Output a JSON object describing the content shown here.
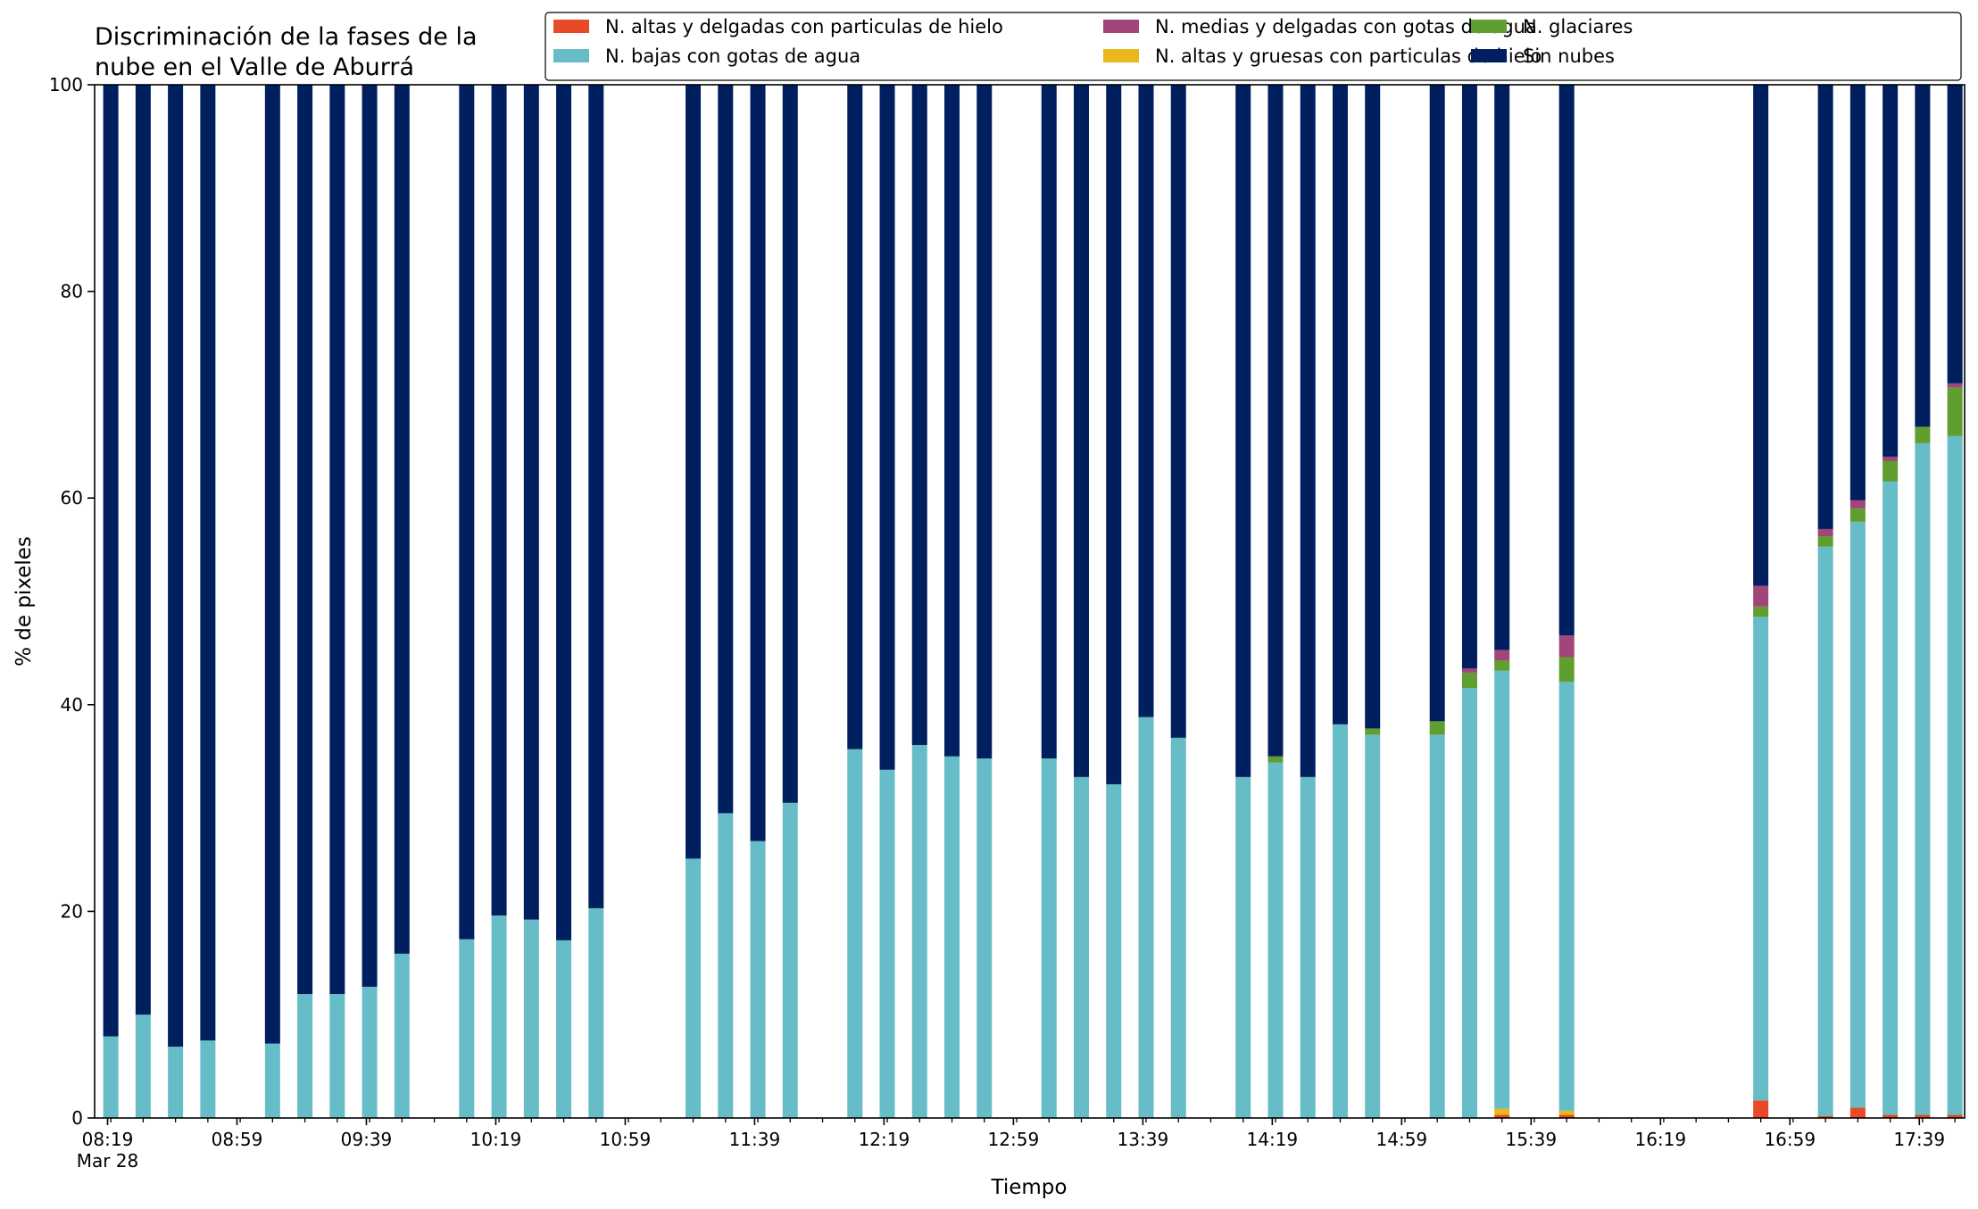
{
  "chart_data": {
    "type": "bar",
    "stacked": true,
    "title_lines": [
      "Discriminación de la fases de la",
      "nube en el Valle de Aburrá"
    ],
    "xlabel": "Tiempo",
    "ylabel": "% de pixeles",
    "ylim": [
      0,
      100
    ],
    "yticks": [
      0,
      20,
      40,
      60,
      80,
      100
    ],
    "x_range_minutes": [
      495,
      1073
    ],
    "xtick_labels": [
      {
        "minute": 499,
        "label": "08:19",
        "sublabel": "Mar 28"
      },
      {
        "minute": 539,
        "label": "08:59"
      },
      {
        "minute": 579,
        "label": "09:39"
      },
      {
        "minute": 619,
        "label": "10:19"
      },
      {
        "minute": 659,
        "label": "10:59"
      },
      {
        "minute": 699,
        "label": "11:39"
      },
      {
        "minute": 739,
        "label": "12:19"
      },
      {
        "minute": 779,
        "label": "12:59"
      },
      {
        "minute": 819,
        "label": "13:39"
      },
      {
        "minute": 859,
        "label": "14:19"
      },
      {
        "minute": 899,
        "label": "14:59"
      },
      {
        "minute": 939,
        "label": "15:39"
      },
      {
        "minute": 979,
        "label": "16:19"
      },
      {
        "minute": 1019,
        "label": "16:59"
      },
      {
        "minute": 1059,
        "label": "17:39"
      }
    ],
    "minor_tick_step_minutes": 10,
    "legend_position": "top-right",
    "series": [
      {
        "name": "N. altas y delgadas con particulas de hielo",
        "color": "#e84a27"
      },
      {
        "name": "N. altas y gruesas con particulas de hielo",
        "color": "#e8b81c"
      },
      {
        "name": "N. bajas con gotas de agua",
        "color": "#66bdc8"
      },
      {
        "name": "N. glaciares",
        "color": "#5f9e2f"
      },
      {
        "name": "N. medias y delgadas con gotas de agua",
        "color": "#a1457a"
      },
      {
        "name": "Sin nubes",
        "color": "#001f5f"
      }
    ],
    "legend_order": [
      0,
      2,
      4,
      1,
      3,
      5
    ],
    "bars": [
      {
        "minute": 500,
        "values": [
          0,
          0,
          7.9,
          0,
          0,
          92.1
        ]
      },
      {
        "minute": 510,
        "values": [
          0,
          0,
          10.0,
          0,
          0,
          90.0
        ]
      },
      {
        "minute": 520,
        "values": [
          0,
          0,
          6.9,
          0,
          0,
          93.1
        ]
      },
      {
        "minute": 530,
        "values": [
          0,
          0,
          7.5,
          0,
          0,
          92.5
        ]
      },
      {
        "minute": 550,
        "values": [
          0,
          0,
          7.2,
          0,
          0,
          92.8
        ]
      },
      {
        "minute": 560,
        "values": [
          0,
          0,
          12.0,
          0,
          0,
          88.0
        ]
      },
      {
        "minute": 570,
        "values": [
          0,
          0,
          12.0,
          0,
          0,
          88.0
        ]
      },
      {
        "minute": 580,
        "values": [
          0,
          0,
          12.7,
          0,
          0,
          87.3
        ]
      },
      {
        "minute": 590,
        "values": [
          0,
          0,
          15.9,
          0,
          0,
          84.1
        ]
      },
      {
        "minute": 610,
        "values": [
          0,
          0,
          17.3,
          0,
          0,
          82.7
        ]
      },
      {
        "minute": 620,
        "values": [
          0,
          0,
          19.6,
          0,
          0,
          80.4
        ]
      },
      {
        "minute": 630,
        "values": [
          0,
          0,
          19.2,
          0,
          0,
          80.8
        ]
      },
      {
        "minute": 640,
        "values": [
          0,
          0,
          17.2,
          0,
          0,
          82.8
        ]
      },
      {
        "minute": 650,
        "values": [
          0,
          0,
          20.3,
          0,
          0,
          79.7
        ]
      },
      {
        "minute": 680,
        "values": [
          0,
          0,
          25.1,
          0,
          0,
          74.9
        ]
      },
      {
        "minute": 690,
        "values": [
          0,
          0,
          29.5,
          0,
          0,
          70.5
        ]
      },
      {
        "minute": 700,
        "values": [
          0,
          0,
          26.8,
          0,
          0,
          73.2
        ]
      },
      {
        "minute": 710,
        "values": [
          0,
          0,
          30.5,
          0,
          0,
          69.5
        ]
      },
      {
        "minute": 730,
        "values": [
          0,
          0,
          35.7,
          0,
          0,
          64.3
        ]
      },
      {
        "minute": 740,
        "values": [
          0,
          0,
          33.7,
          0,
          0,
          66.3
        ]
      },
      {
        "minute": 750,
        "values": [
          0,
          0,
          36.1,
          0,
          0,
          63.9
        ]
      },
      {
        "minute": 760,
        "values": [
          0,
          0,
          35.0,
          0,
          0,
          65.0
        ]
      },
      {
        "minute": 770,
        "values": [
          0,
          0,
          34.8,
          0,
          0,
          65.2
        ]
      },
      {
        "minute": 790,
        "values": [
          0,
          0,
          34.8,
          0,
          0,
          65.2
        ]
      },
      {
        "minute": 800,
        "values": [
          0,
          0,
          33.0,
          0,
          0,
          67.0
        ]
      },
      {
        "minute": 810,
        "values": [
          0,
          0,
          32.3,
          0,
          0,
          67.7
        ]
      },
      {
        "minute": 820,
        "values": [
          0,
          0,
          38.8,
          0,
          0,
          61.2
        ]
      },
      {
        "minute": 830,
        "values": [
          0,
          0,
          36.8,
          0,
          0,
          63.2
        ]
      },
      {
        "minute": 850,
        "values": [
          0,
          0,
          33.0,
          0,
          0,
          67.0
        ]
      },
      {
        "minute": 860,
        "values": [
          0,
          0,
          34.4,
          0.6,
          0,
          65.0
        ]
      },
      {
        "minute": 870,
        "values": [
          0,
          0,
          33.0,
          0,
          0,
          67.0
        ]
      },
      {
        "minute": 880,
        "values": [
          0,
          0,
          38.1,
          0,
          0,
          61.9
        ]
      },
      {
        "minute": 890,
        "values": [
          0,
          0,
          37.1,
          0.6,
          0,
          62.3
        ]
      },
      {
        "minute": 910,
        "values": [
          0,
          0,
          37.1,
          1.3,
          0,
          61.6
        ]
      },
      {
        "minute": 920,
        "values": [
          0,
          0,
          41.6,
          1.5,
          0.4,
          56.5
        ]
      },
      {
        "minute": 930,
        "values": [
          0.3,
          0.6,
          42.4,
          1.0,
          1.0,
          54.7
        ]
      },
      {
        "minute": 950,
        "values": [
          0.3,
          0.4,
          41.5,
          2.4,
          2.1,
          53.3
        ]
      },
      {
        "minute": 1010,
        "values": [
          1.7,
          0,
          46.8,
          1.0,
          2.0,
          48.5
        ]
      },
      {
        "minute": 1030,
        "values": [
          0.2,
          0,
          55.1,
          1.0,
          0.7,
          43.0
        ]
      },
      {
        "minute": 1040,
        "values": [
          1.0,
          0,
          56.7,
          1.3,
          0.8,
          40.2
        ]
      },
      {
        "minute": 1050,
        "values": [
          0.3,
          0,
          61.3,
          2.0,
          0.4,
          36.0
        ]
      },
      {
        "minute": 1060,
        "values": [
          0.3,
          0,
          65.0,
          1.6,
          0,
          33.1
        ]
      },
      {
        "minute": 1070,
        "values": [
          0.3,
          0,
          65.7,
          4.7,
          0.4,
          28.9
        ]
      }
    ]
  }
}
